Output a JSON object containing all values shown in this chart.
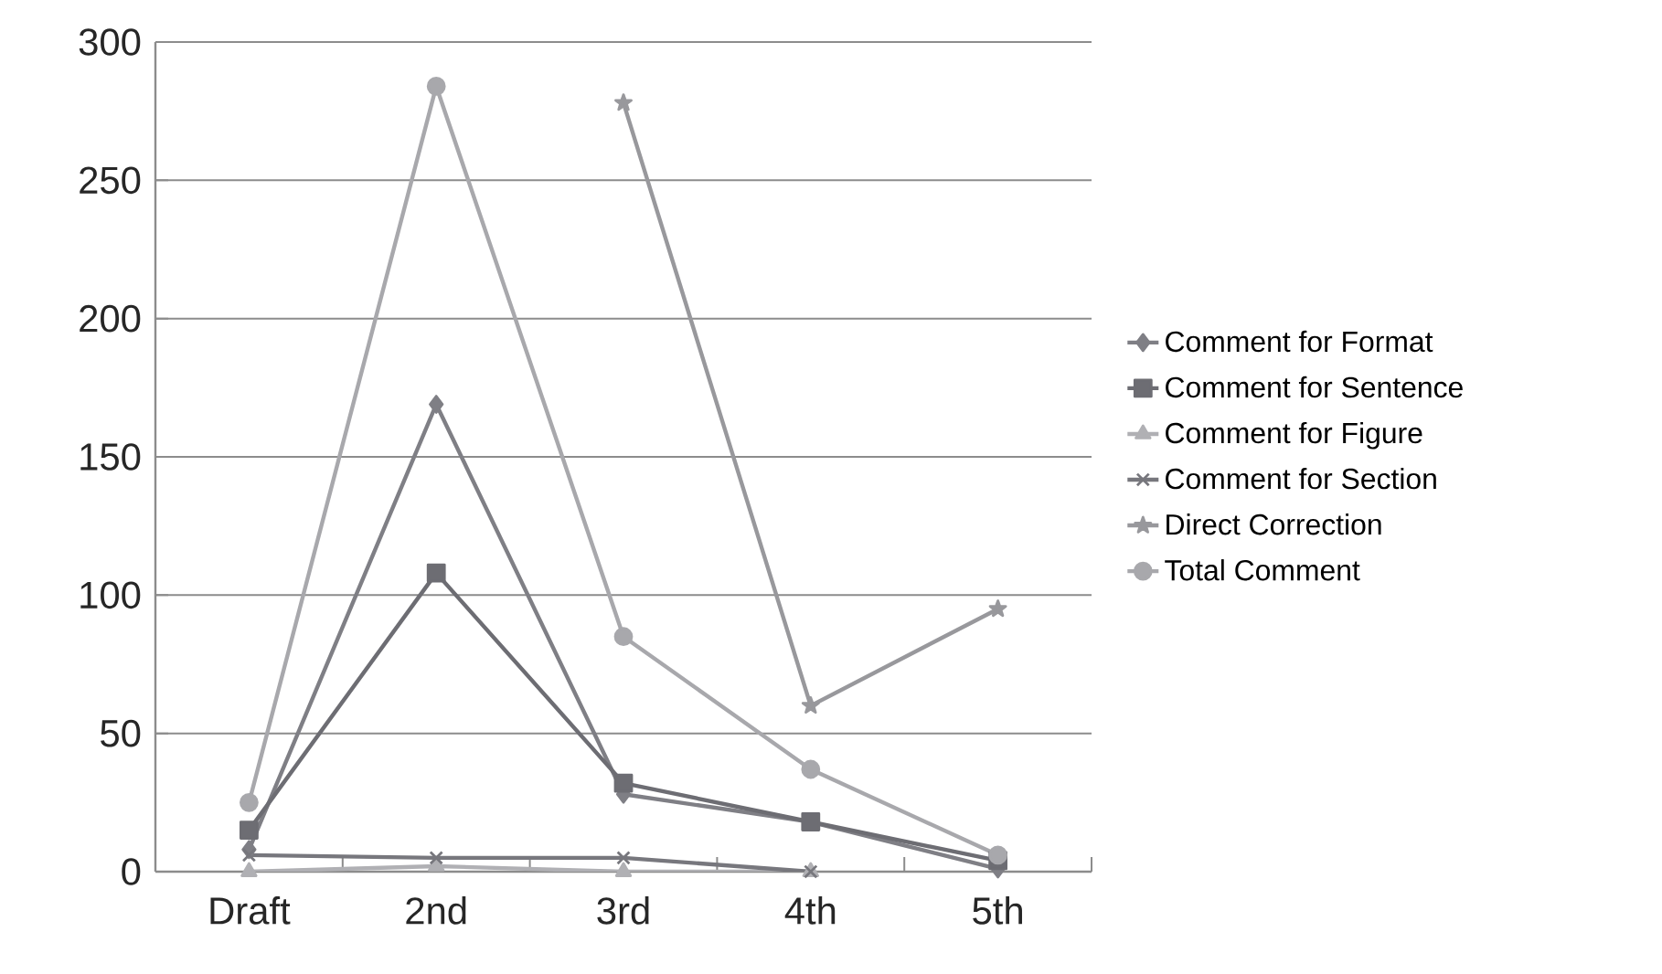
{
  "chart_data": {
    "type": "line",
    "categories": [
      "Draft",
      "2nd",
      "3rd",
      "4th",
      "5th"
    ],
    "ylim": [
      0,
      300
    ],
    "yticks": [
      0,
      50,
      100,
      150,
      200,
      250,
      300
    ],
    "grid": "y",
    "legend": "right",
    "series": [
      {
        "name": "Comment for Format",
        "color": "#7f7f85",
        "marker": "diamond",
        "values": [
          8,
          169,
          28,
          18,
          1
        ]
      },
      {
        "name": "Comment for Sentence",
        "color": "#6d6d73",
        "marker": "square",
        "values": [
          15,
          108,
          32,
          18,
          4
        ]
      },
      {
        "name": "Comment for Figure",
        "color": "#b0b0b4",
        "marker": "triangle",
        "values": [
          0,
          2,
          0,
          0,
          null
        ]
      },
      {
        "name": "Comment for Section",
        "color": "#77777d",
        "marker": "cross",
        "values": [
          6,
          5,
          5,
          0,
          null
        ]
      },
      {
        "name": "Direct Correction",
        "color": "#98989c",
        "marker": "star",
        "values": [
          null,
          null,
          278,
          60,
          95
        ]
      },
      {
        "name": "Total Comment",
        "color": "#a8a8ac",
        "marker": "circle",
        "values": [
          25,
          284,
          85,
          37,
          6
        ]
      }
    ]
  }
}
